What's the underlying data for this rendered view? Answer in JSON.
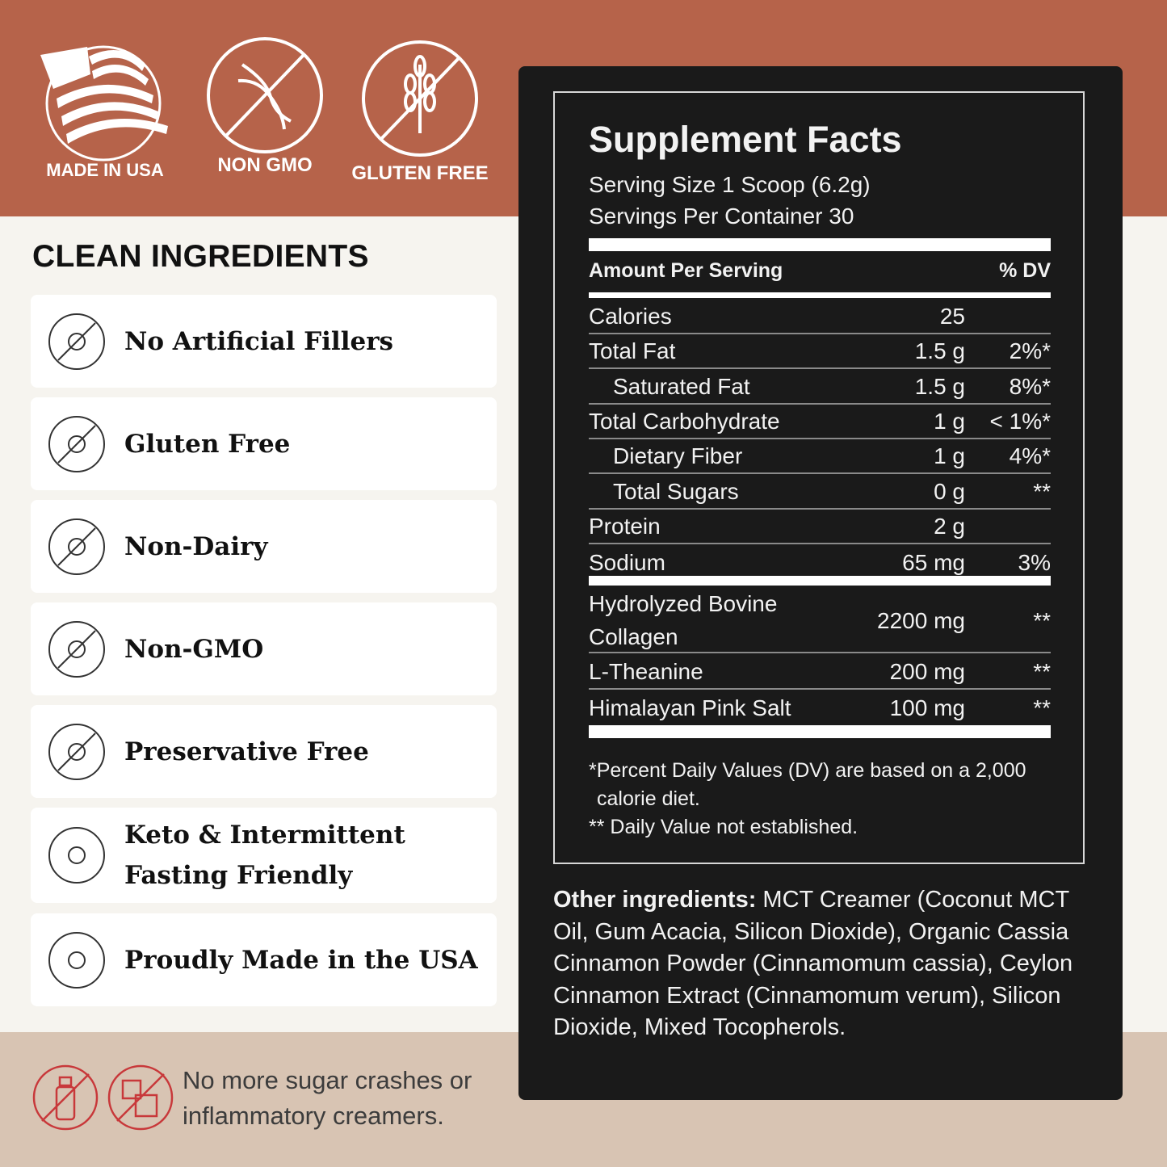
{
  "badges": [
    {
      "label": "MADE IN USA",
      "icon": "us-flag-icon"
    },
    {
      "label": "NON GMO",
      "icon": "dna-crossed-icon"
    },
    {
      "label": "GLUTEN FREE",
      "icon": "wheat-crossed-icon"
    }
  ],
  "clean": {
    "heading": "CLEAN INGREDIENTS",
    "items": [
      {
        "label": "No Artificial Fillers",
        "icon": "dropper-crossed-icon"
      },
      {
        "label": "Gluten Free",
        "icon": "wheat-crossed-icon"
      },
      {
        "label": "Non-Dairy",
        "icon": "milk-crossed-icon"
      },
      {
        "label": "Non-GMO",
        "icon": "dna-crossed-icon"
      },
      {
        "label": "Preservative Free",
        "icon": "test-tube-crossed-icon"
      },
      {
        "label": "Keto & Intermittent",
        "label2": "Fasting Friendly",
        "icon": "stomach-icon"
      },
      {
        "label": "Proudly Made in the USA",
        "icon": "us-flag-icon"
      }
    ]
  },
  "facts": {
    "title": "Supplement Facts",
    "serving_size": "Serving Size 1 Scoop (6.2g)",
    "servings": "Servings Per Container 30",
    "header_amount": "Amount Per Serving",
    "header_dv": "% DV",
    "rows": [
      {
        "name": "Calories",
        "amount": "25",
        "dv": ""
      },
      {
        "name": "Total Fat",
        "amount": "1.5 g",
        "dv": "2%*"
      },
      {
        "name": "Saturated Fat",
        "amount": "1.5 g",
        "dv": "8%*",
        "indent": true
      },
      {
        "name": "Total Carbohydrate",
        "amount": "1 g",
        "dv": "< 1%*"
      },
      {
        "name": "Dietary Fiber",
        "amount": "1 g",
        "dv": "4%*",
        "indent": true
      },
      {
        "name": "Total Sugars",
        "amount": "0 g",
        "dv": "**",
        "indent": true
      },
      {
        "name": "Protein",
        "amount": "2 g",
        "dv": ""
      },
      {
        "name": "Sodium",
        "amount": "65 mg",
        "dv": "3%"
      }
    ],
    "ingredients": [
      {
        "name": "Hydrolyzed Bovine",
        "name2": "Collagen",
        "amount": "2200 mg",
        "dv": "**"
      },
      {
        "name": "L-Theanine",
        "amount": "200 mg",
        "dv": "**"
      },
      {
        "name": "Himalayan Pink Salt",
        "amount": "100 mg",
        "dv": "**"
      }
    ],
    "footnote1": "*Percent Daily Values (DV) are based on a 2,000",
    "footnote1b": "calorie diet.",
    "footnote2": "** Daily Value not established."
  },
  "other": {
    "label": "Other ingredients:",
    "text": " MCT Creamer (Coconut MCT Oil, Gum Acacia, Silicon Dioxide), Organic Cassia Cinnamon Powder (Cinnamomum cassia), Ceylon Cinnamon Extract (Cinnamomum verum), Silicon Dioxide, Mixed Tocopherols."
  },
  "bottom": {
    "line1": "No more sugar crashes or",
    "line2": "inflammatory creamers.",
    "icons": [
      "milk-bottle-crossed-icon",
      "sugar-cubes-crossed-icon"
    ]
  },
  "colors": {
    "top": "#b6634a",
    "bottom": "#d8c4b3",
    "panel": "#1a1a1a",
    "accent_red": "#c8383a"
  }
}
